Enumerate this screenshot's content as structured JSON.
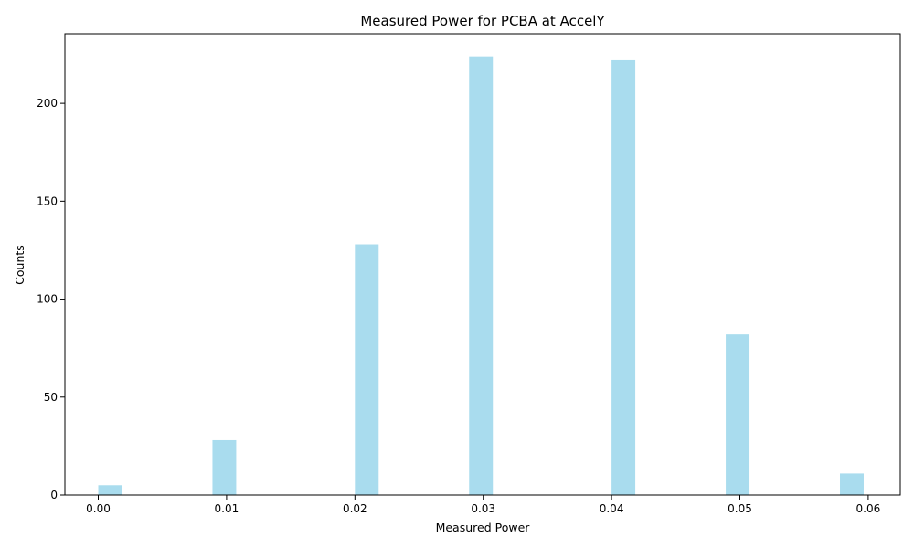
{
  "chart_data": {
    "type": "bar",
    "title": "Measured Power for PCBA at AccelY",
    "xlabel": "Measured Power",
    "ylabel": "Counts",
    "xlim": [
      -0.0026,
      0.0625
    ],
    "ylim": [
      0,
      235.5
    ],
    "x_ticks": [
      "0.00",
      "0.01",
      "0.02",
      "0.03",
      "0.04",
      "0.05",
      "0.06"
    ],
    "x_tick_values": [
      0.0,
      0.01,
      0.02,
      0.03,
      0.04,
      0.05,
      0.06
    ],
    "y_ticks": [
      "0",
      "50",
      "100",
      "150",
      "200"
    ],
    "y_tick_values": [
      0,
      50,
      100,
      150,
      200
    ],
    "bin_width": 0.00185,
    "bars": [
      {
        "x": 0.0,
        "value": 5
      },
      {
        "x": 0.0089,
        "value": 28
      },
      {
        "x": 0.02,
        "value": 128
      },
      {
        "x": 0.0289,
        "value": 224
      },
      {
        "x": 0.04,
        "value": 222
      },
      {
        "x": 0.0489,
        "value": 82
      },
      {
        "x": 0.0578,
        "value": 11
      }
    ],
    "bar_color": "#a9dcee",
    "grid": false,
    "legend": "none"
  }
}
